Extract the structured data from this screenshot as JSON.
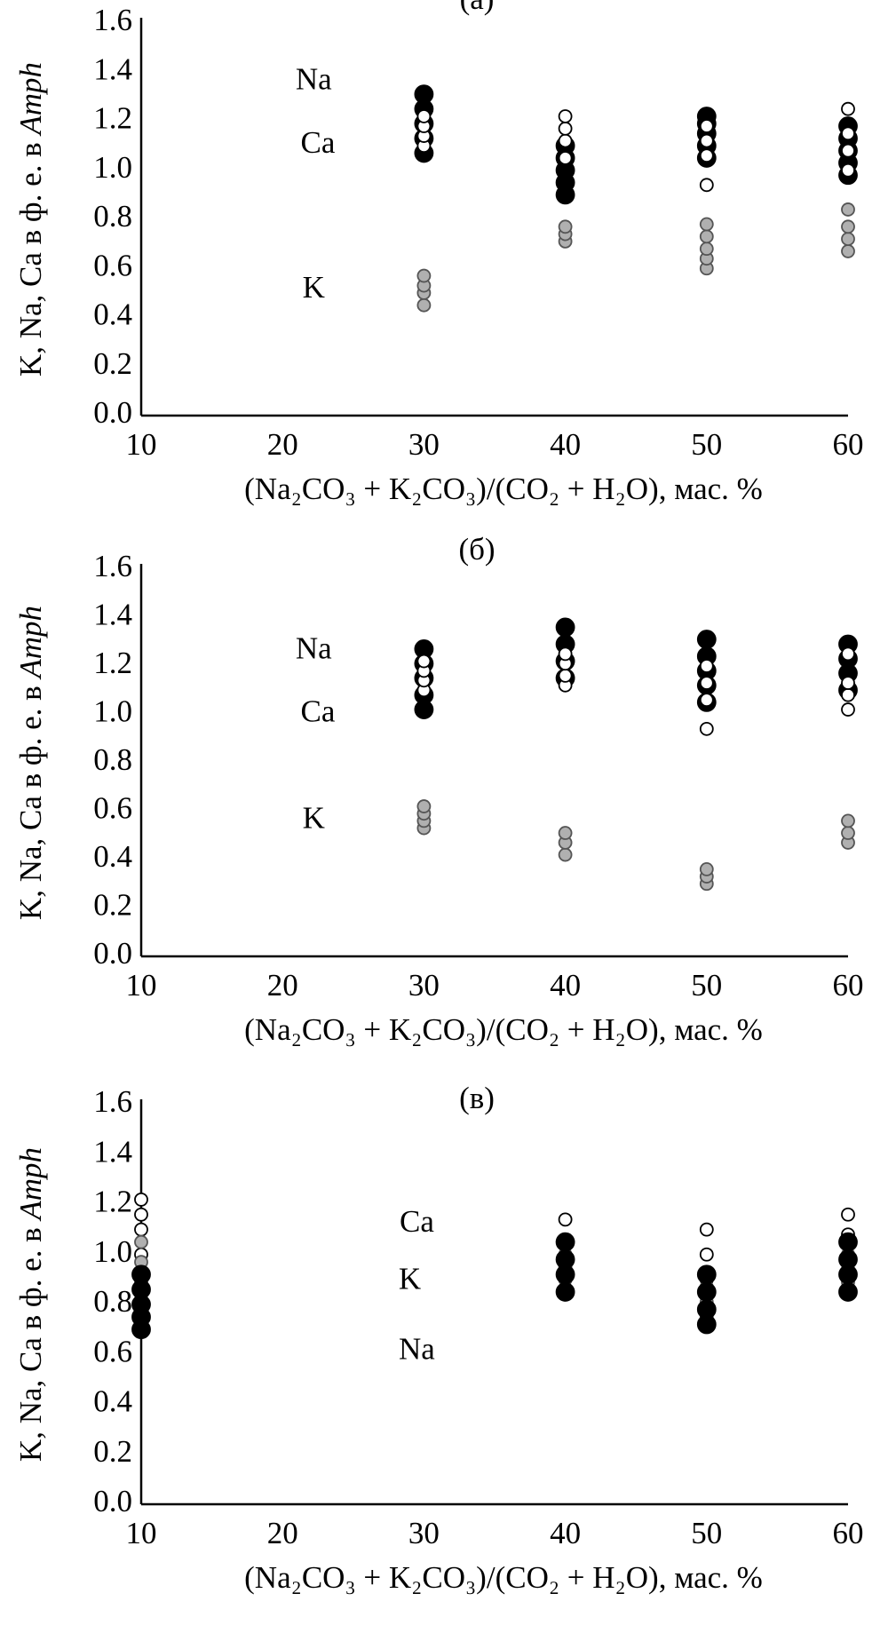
{
  "chart_data": [
    {
      "type": "scatter",
      "title": "(а)",
      "ylabel": "K, Na, Ca в ф. е. в",
      "ylabel_italic": "Amph",
      "xlabel": "(Na₂CO₃ + K₂CO₃)/(CO₂ + H₂O), мас. %",
      "xlim": [
        10,
        60
      ],
      "xticks": [
        10,
        20,
        30,
        40,
        50,
        60
      ],
      "ylim": [
        0,
        1.6
      ],
      "yticks": [
        {
          "value": 0,
          "label": "0.0"
        },
        0.2,
        0.4,
        0.6,
        0.8,
        {
          "value": 1,
          "label": "1.0"
        },
        1.2,
        1.4,
        1.6
      ],
      "series": [
        {
          "name": "Na",
          "color": "#000000",
          "x": [
            30,
            30,
            30,
            30,
            30,
            40,
            40,
            40,
            40,
            40,
            50,
            50,
            50,
            50,
            50,
            60,
            60,
            60,
            60,
            60
          ],
          "values": [
            1.07,
            1.13,
            1.19,
            1.25,
            1.31,
            0.9,
            0.95,
            1.0,
            1.05,
            1.1,
            1.05,
            1.1,
            1.15,
            1.19,
            1.22,
            0.98,
            1.03,
            1.08,
            1.13,
            1.18
          ]
        },
        {
          "name": "Ca",
          "color": "#ffffff",
          "x": [
            30,
            30,
            30,
            30,
            40,
            40,
            40,
            40,
            50,
            50,
            50,
            50,
            60,
            60,
            60,
            60
          ],
          "values": [
            1.1,
            1.14,
            1.18,
            1.22,
            1.05,
            1.12,
            1.17,
            1.22,
            0.94,
            1.06,
            1.12,
            1.18,
            1.0,
            1.08,
            1.15,
            1.25
          ]
        },
        {
          "name": "K",
          "color": "#b0b0b0",
          "x": [
            30,
            30,
            30,
            30,
            40,
            40,
            40,
            50,
            50,
            50,
            50,
            50,
            60,
            60,
            60,
            60
          ],
          "values": [
            0.45,
            0.5,
            0.53,
            0.57,
            0.71,
            0.74,
            0.77,
            0.6,
            0.64,
            0.68,
            0.73,
            0.78,
            0.67,
            0.72,
            0.77,
            0.84
          ]
        }
      ]
    },
    {
      "type": "scatter",
      "title": "(б)",
      "ylabel": "K, Na, Ca в ф. е. в",
      "ylabel_italic": "Amph",
      "xlabel": "(Na₂CO₃ + K₂CO₃)/(CO₂ + H₂O), мас. %",
      "xlim": [
        10,
        60
      ],
      "xticks": [
        10,
        20,
        30,
        40,
        50,
        60
      ],
      "ylim": [
        0,
        1.6
      ],
      "yticks": [
        {
          "value": 0,
          "label": "0.0"
        },
        0.2,
        0.4,
        0.6,
        0.8,
        {
          "value": 1,
          "label": "1.0"
        },
        1.2,
        1.4,
        1.6
      ],
      "series": [
        {
          "name": "Na",
          "color": "#000000",
          "x": [
            30,
            30,
            30,
            30,
            30,
            40,
            40,
            40,
            40,
            50,
            50,
            50,
            50,
            50,
            60,
            60,
            60,
            60
          ],
          "values": [
            1.02,
            1.08,
            1.15,
            1.21,
            1.27,
            1.15,
            1.22,
            1.29,
            1.36,
            1.05,
            1.12,
            1.18,
            1.24,
            1.31,
            1.1,
            1.17,
            1.23,
            1.29
          ]
        },
        {
          "name": "Ca",
          "color": "#ffffff",
          "x": [
            30,
            30,
            30,
            30,
            40,
            40,
            40,
            40,
            50,
            50,
            50,
            50,
            60,
            60,
            60,
            60
          ],
          "values": [
            1.1,
            1.14,
            1.18,
            1.22,
            1.12,
            1.16,
            1.21,
            1.25,
            0.94,
            1.06,
            1.13,
            1.2,
            1.02,
            1.08,
            1.13,
            1.25
          ]
        },
        {
          "name": "K",
          "color": "#b0b0b0",
          "x": [
            30,
            30,
            30,
            30,
            40,
            40,
            40,
            50,
            50,
            50,
            60,
            60,
            60
          ],
          "values": [
            0.53,
            0.56,
            0.59,
            0.62,
            0.42,
            0.47,
            0.51,
            0.3,
            0.33,
            0.36,
            0.47,
            0.51,
            0.56
          ]
        }
      ]
    },
    {
      "type": "scatter",
      "title": "(в)",
      "ylabel": "K, Na, Ca в ф. е. в",
      "ylabel_italic": "Amph",
      "xlabel": "(Na₂CO₃ + K₂CO₃)/(CO₂ + H₂O), мас. %",
      "xlim": [
        10,
        60
      ],
      "xticks": [
        10,
        20,
        30,
        40,
        50,
        60
      ],
      "ylim": [
        0,
        1.6
      ],
      "yticks": [
        {
          "value": 0,
          "label": "0.0"
        },
        0.2,
        0.4,
        0.6,
        0.8,
        {
          "value": 1,
          "label": "1.0"
        },
        1.2,
        1.4,
        1.6
      ],
      "series": [
        {
          "name": "Ca",
          "color": "#ffffff",
          "x": [
            10,
            10,
            10,
            10,
            10,
            40,
            40,
            40,
            40,
            50,
            50,
            50,
            50,
            60,
            60,
            60,
            60
          ],
          "values": [
            0.9,
            1.0,
            1.1,
            1.16,
            1.22,
            0.9,
            0.98,
            1.06,
            1.14,
            0.8,
            0.9,
            1.0,
            1.1,
            0.9,
            0.99,
            1.08,
            1.16
          ]
        },
        {
          "name": "K",
          "color": "#b0b0b0",
          "x": [
            10,
            10,
            10,
            10,
            40,
            40,
            40,
            40,
            50,
            50,
            50,
            50,
            60,
            60,
            60,
            60
          ],
          "values": [
            0.82,
            0.89,
            0.97,
            1.05,
            0.85,
            0.9,
            0.95,
            1.0,
            0.75,
            0.81,
            0.87,
            0.92,
            0.84,
            0.89,
            0.94,
            1.0
          ]
        },
        {
          "name": "Na",
          "color": "#000000",
          "x": [
            10,
            10,
            10,
            10,
            10,
            40,
            40,
            40,
            40,
            50,
            50,
            50,
            50,
            60,
            60,
            60,
            60
          ],
          "values": [
            0.7,
            0.75,
            0.8,
            0.86,
            0.92,
            0.85,
            0.92,
            0.98,
            1.05,
            0.72,
            0.78,
            0.85,
            0.92,
            0.85,
            0.92,
            0.98,
            1.05
          ]
        }
      ]
    }
  ]
}
